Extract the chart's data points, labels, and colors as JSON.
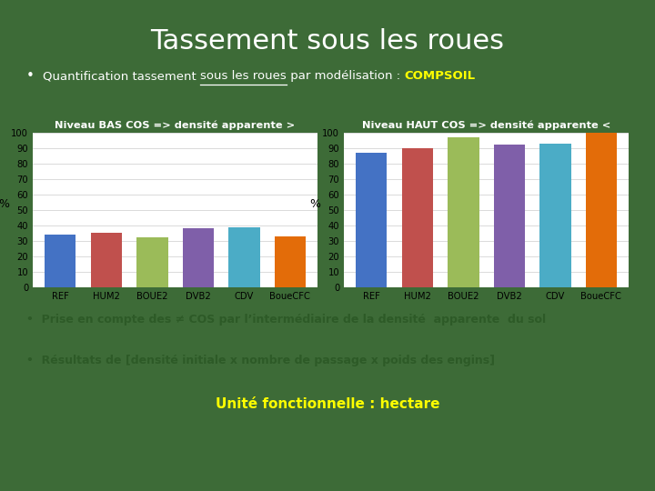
{
  "title": "Tassement sous les roues",
  "bg_color": "#3d6b37",
  "bullet_color": "#ffffff",
  "compsoil_color": "#ffff00",
  "chart1_title": "Niveau BAS COS => densité apparente >",
  "chart2_title": "Niveau HAUT COS => densité apparente <",
  "chart_title_color": "#ffffff",
  "categories": [
    "REF",
    "HUM2",
    "BOUE2",
    "DVB2",
    "CDV",
    "BoueCFC"
  ],
  "values_low": [
    34,
    35,
    32,
    38,
    39,
    33
  ],
  "values_high": [
    87,
    90,
    97,
    92,
    93,
    100
  ],
  "bar_colors": [
    "#4472c4",
    "#c0504d",
    "#9bbb59",
    "#7f5fa9",
    "#4bacc6",
    "#e36c09"
  ],
  "ylabel": "%",
  "ylim": [
    0,
    100
  ],
  "yticks": [
    0,
    10,
    20,
    30,
    40,
    50,
    60,
    70,
    80,
    90,
    100
  ],
  "chart_bg": "#ffffff",
  "bullet2a": "Prise en compte des ≠ COS par l’intermédiaire de la densité  apparente  du sol",
  "bullet2b": "Résultats de [densité initiale x nombre de passage x poids des engins]",
  "bullet2_color": "#2d5a27",
  "footer_text": "Unité fonctionnelle : hectare",
  "footer_color": "#ffff00",
  "footer_bg": "#5a8f52",
  "info_bg": "#c5dbbf",
  "logo_bg": "#c8d8c0",
  "bullet1a": "Quantification tassement ",
  "bullet1b": "sous les roues",
  "bullet1c": " par modélisation : ",
  "bullet1d": "COMPSOIL"
}
